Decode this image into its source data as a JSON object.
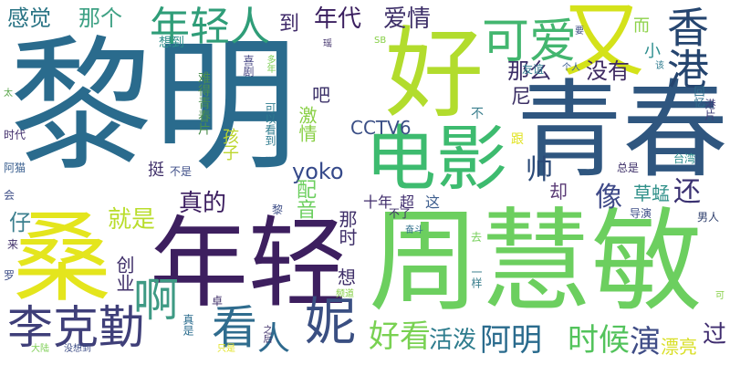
{
  "words": [
    {
      "text": "黎明",
      "color": "#2a6b8d"
    },
    {
      "text": "青春",
      "color": "#2f567f"
    },
    {
      "text": "周慧敏",
      "color": "#6ccf5f"
    },
    {
      "text": "年轻",
      "color": "#3d1f5f"
    },
    {
      "text": "桑",
      "color": "#e4e51d"
    },
    {
      "text": "好",
      "color": "#b2dc2d"
    },
    {
      "text": "又",
      "color": "#d4e21a"
    },
    {
      "text": "电影",
      "color": "#3dbb6f"
    },
    {
      "text": "年轻人",
      "color": "#2f9d78"
    },
    {
      "text": "香港",
      "color": "#25456f"
    },
    {
      "text": "可爱",
      "color": "#43b66f"
    },
    {
      "text": "李克勤",
      "color": "#3f3f79"
    },
    {
      "text": "啊",
      "color": "#3e9a84"
    },
    {
      "text": "妮",
      "color": "#3a4f82"
    },
    {
      "text": "看",
      "color": "#2f6c8e"
    },
    {
      "text": "人",
      "color": "#2e6a8e"
    },
    {
      "text": "好看",
      "color": "#79d152"
    },
    {
      "text": "活泼",
      "color": "#2f7d8e"
    },
    {
      "text": "阿明",
      "color": "#2a6b8d"
    },
    {
      "text": "时候",
      "color": "#53c35c"
    },
    {
      "text": "演",
      "color": "#3f4c86"
    },
    {
      "text": "过",
      "color": "#3f2c6f"
    },
    {
      "text": "漂亮",
      "color": "#d9df26"
    },
    {
      "text": "就是",
      "color": "#b9dd2a"
    },
    {
      "text": "真的",
      "color": "#3b1d5f"
    },
    {
      "text": "仔",
      "color": "#3b7f8e"
    },
    {
      "text": "帅",
      "color": "#2b4a78"
    },
    {
      "text": "尼",
      "color": "#3b2f64"
    },
    {
      "text": "像",
      "color": "#3f4a88"
    },
    {
      "text": "还",
      "color": "#3b3272"
    },
    {
      "text": "草蜢",
      "color": "#2e8f88"
    },
    {
      "text": "却",
      "color": "#5a3b76"
    },
    {
      "text": "yoko",
      "color": "#35498a"
    },
    {
      "text": "配音",
      "color": "#6ccf5f"
    },
    {
      "text": "激情",
      "color": "#88cf44"
    },
    {
      "text": "CCTV6",
      "color": "#3b4f86"
    },
    {
      "text": "孩子",
      "color": "#bcd62d"
    },
    {
      "text": "那么",
      "color": "#3c2f68"
    },
    {
      "text": "没有",
      "color": "#3e2a62"
    },
    {
      "text": "小",
      "color": "#2f8f90"
    },
    {
      "text": "感觉",
      "color": "#2a7485"
    },
    {
      "text": "那个",
      "color": "#3ea184"
    },
    {
      "text": "年代",
      "color": "#3a1f5f"
    },
    {
      "text": "爱情",
      "color": "#3d2f68"
    },
    {
      "text": "到",
      "color": "#3f2a69"
    },
    {
      "text": "吧",
      "color": "#3a2f67"
    },
    {
      "text": "而",
      "color": "#8dd24a"
    },
    {
      "text": "想到",
      "color": "#2c8d89"
    },
    {
      "text": "难得青春片",
      "color": "#4c8f4f"
    },
    {
      "text": "喜剧",
      "color": "#4b4b86"
    },
    {
      "text": "多年",
      "color": "#7fcf57"
    },
    {
      "text": "可以看到",
      "color": "#2f7c8f"
    },
    {
      "text": "友谊",
      "color": "#2f7c8f"
    },
    {
      "text": "个人",
      "color": "#3c5f92"
    },
    {
      "text": "要",
      "color": "#3e4c86"
    },
    {
      "text": "该",
      "color": "#2f7c8f"
    },
    {
      "text": "瑶",
      "color": "#3f2f69"
    },
    {
      "text": "SB",
      "color": "#86cf46"
    },
    {
      "text": "不",
      "color": "#3b7f8e"
    },
    {
      "text": "跟",
      "color": "#e1e320"
    },
    {
      "text": "十年",
      "color": "#3f2b6a"
    },
    {
      "text": "超",
      "color": "#3f2c6e"
    },
    {
      "text": "这",
      "color": "#3f5f8f"
    },
    {
      "text": "奋斗",
      "color": "#2f6f8b"
    },
    {
      "text": "导演",
      "color": "#3f4f88"
    },
    {
      "text": "男人",
      "color": "#2f3f6d"
    },
    {
      "text": "不了",
      "color": "#3d2c67"
    },
    {
      "text": "总是",
      "color": "#3d2f68"
    },
    {
      "text": "台湾",
      "color": "#2f8f90"
    },
    {
      "text": "港片",
      "color": "#3f3f79"
    },
    {
      "text": "回忆",
      "color": "#2f6f8b"
    },
    {
      "text": "时代",
      "color": "#3f2b6a"
    },
    {
      "text": "太",
      "color": "#5aa64a"
    },
    {
      "text": "阿猫",
      "color": "#3a5f8f"
    },
    {
      "text": "会",
      "color": "#3f4f88"
    },
    {
      "text": "来",
      "color": "#3f2f69"
    },
    {
      "text": "罗",
      "color": "#3f4f88"
    },
    {
      "text": "大陆",
      "color": "#7fcf57"
    },
    {
      "text": "没想到",
      "color": "#3f4f88"
    },
    {
      "text": "只是",
      "color": "#e2e221"
    },
    {
      "text": "之后",
      "color": "#3f2f69"
    },
    {
      "text": "真是",
      "color": "#2a6b8d"
    },
    {
      "text": "频道",
      "color": "#86cf46"
    },
    {
      "text": "卓",
      "color": "#3f2f69"
    },
    {
      "text": "一样",
      "color": "#3b7f8e"
    },
    {
      "text": "去",
      "color": "#74cf58"
    },
    {
      "text": "黎",
      "color": "#3f4f88"
    },
    {
      "text": "那时",
      "color": "#3f2f69"
    },
    {
      "text": "想",
      "color": "#3f2f69"
    },
    {
      "text": "创业",
      "color": "#3f2f69"
    },
    {
      "text": "挺",
      "color": "#3f2f69"
    },
    {
      "text": "不是",
      "color": "#3f4f88"
    },
    {
      "text": "可",
      "color": "#86cf46"
    }
  ]
}
